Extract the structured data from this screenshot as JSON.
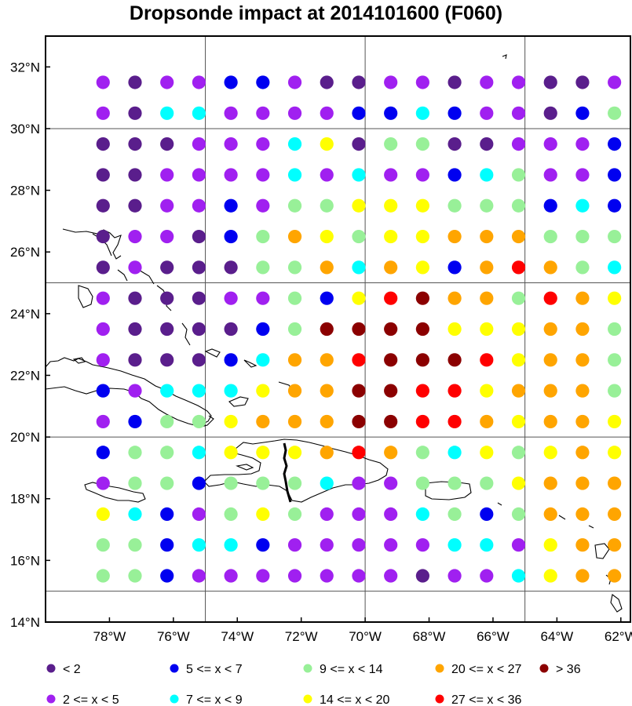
{
  "title": "Dropsonde impact at 2014101600 (F060)",
  "map": {
    "lon_range": [
      -80.0,
      -61.7
    ],
    "lat_range": [
      14.0,
      33.0
    ],
    "grid_lons": [
      -75,
      -70,
      -65
    ],
    "grid_lats": [
      15,
      20,
      25,
      30
    ],
    "x_ticks": [
      "78°W",
      "76°W",
      "74°W",
      "72°W",
      "70°W",
      "68°W",
      "66°W",
      "64°W",
      "62°W"
    ],
    "x_tick_values": [
      -78,
      -76,
      -74,
      -72,
      -70,
      -68,
      -66,
      -64,
      -62
    ],
    "y_ticks": [
      "14°N",
      "16°N",
      "18°N",
      "20°N",
      "22°N",
      "24°N",
      "26°N",
      "28°N",
      "30°N",
      "32°N"
    ],
    "y_tick_values": [
      14,
      16,
      18,
      20,
      22,
      24,
      26,
      28,
      30,
      32
    ],
    "land_outline": "black",
    "border_emphasis": "Haiti–Dominican Republic border drawn thick"
  },
  "legend": [
    {
      "label": "<  2",
      "color": "#5a1e8c"
    },
    {
      "label": "5 <= x <  7",
      "color": "#0000f0"
    },
    {
      "label": "9 <= x < 14",
      "color": "#98f098"
    },
    {
      "label": "20 <= x < 27",
      "color": "#ffa500"
    },
    {
      "label": "> 36",
      "color": "#8b0000"
    },
    {
      "label": "2 <= x <  5",
      "color": "#a020f0"
    },
    {
      "label": "7 <= x <  9",
      "color": "#00ffff"
    },
    {
      "label": "14 <= x < 20",
      "color": "#ffff00"
    },
    {
      "label": "27 <= x < 36",
      "color": "#ff0000"
    }
  ],
  "chart_data": {
    "type": "scatter",
    "grid_lons": [
      -78.2,
      -77.2,
      -76.2,
      -75.2,
      -74.2,
      -73.2,
      -72.2,
      -71.2,
      -70.2,
      -69.2,
      -68.2,
      -67.2,
      -66.2,
      -65.2,
      -64.2,
      -63.2,
      -62.2
    ],
    "grid_lats": [
      31.5,
      30.5,
      29.5,
      28.5,
      27.5,
      26.5,
      25.5,
      24.5,
      23.5,
      22.5,
      21.5,
      20.5,
      19.5,
      18.5,
      17.5,
      16.5,
      15.5
    ],
    "class_key": {
      "D": "< 2",
      "P": "2 <= x < 5",
      "B": "5 <= x < 7",
      "C": "7 <= x < 9",
      "G": "9 <= x < 14",
      "Y": "14 <= x < 20",
      "O": "20 <= x < 27",
      "R": "27 <= x < 36",
      "M": "> 36"
    },
    "rows": [
      "PDPPBBPDDPPDPPDDP",
      "PDCCPPPPBBCBPPDBG",
      "DDDPPPCYDGGDDPPPB",
      "DDPPPPCPCPPBCGPPB",
      "DDPPBPGGYYYGGGBCB",
      "DPPDBGOYGYYOOOGGG",
      "DPDDDGGOCOYBOROGC",
      "PDDDPPGBYRMOOGROY",
      "PDDDDBGMMMMYYYOOG",
      "PDDDBCOORMMMRYOOG",
      "BPCCCYOOMMRRYOOOG",
      "PBGGYOOOMMRROYOOY",
      "BGGCYYYOROGCYGYOY",
      "PGGBGGGCPPGGGYOOO",
      "YCBPGYGPPPCGBGOOO",
      "GGBCCBPPPPPCCPYOO",
      "GGBPPPPPPPDPPCYOO"
    ]
  }
}
